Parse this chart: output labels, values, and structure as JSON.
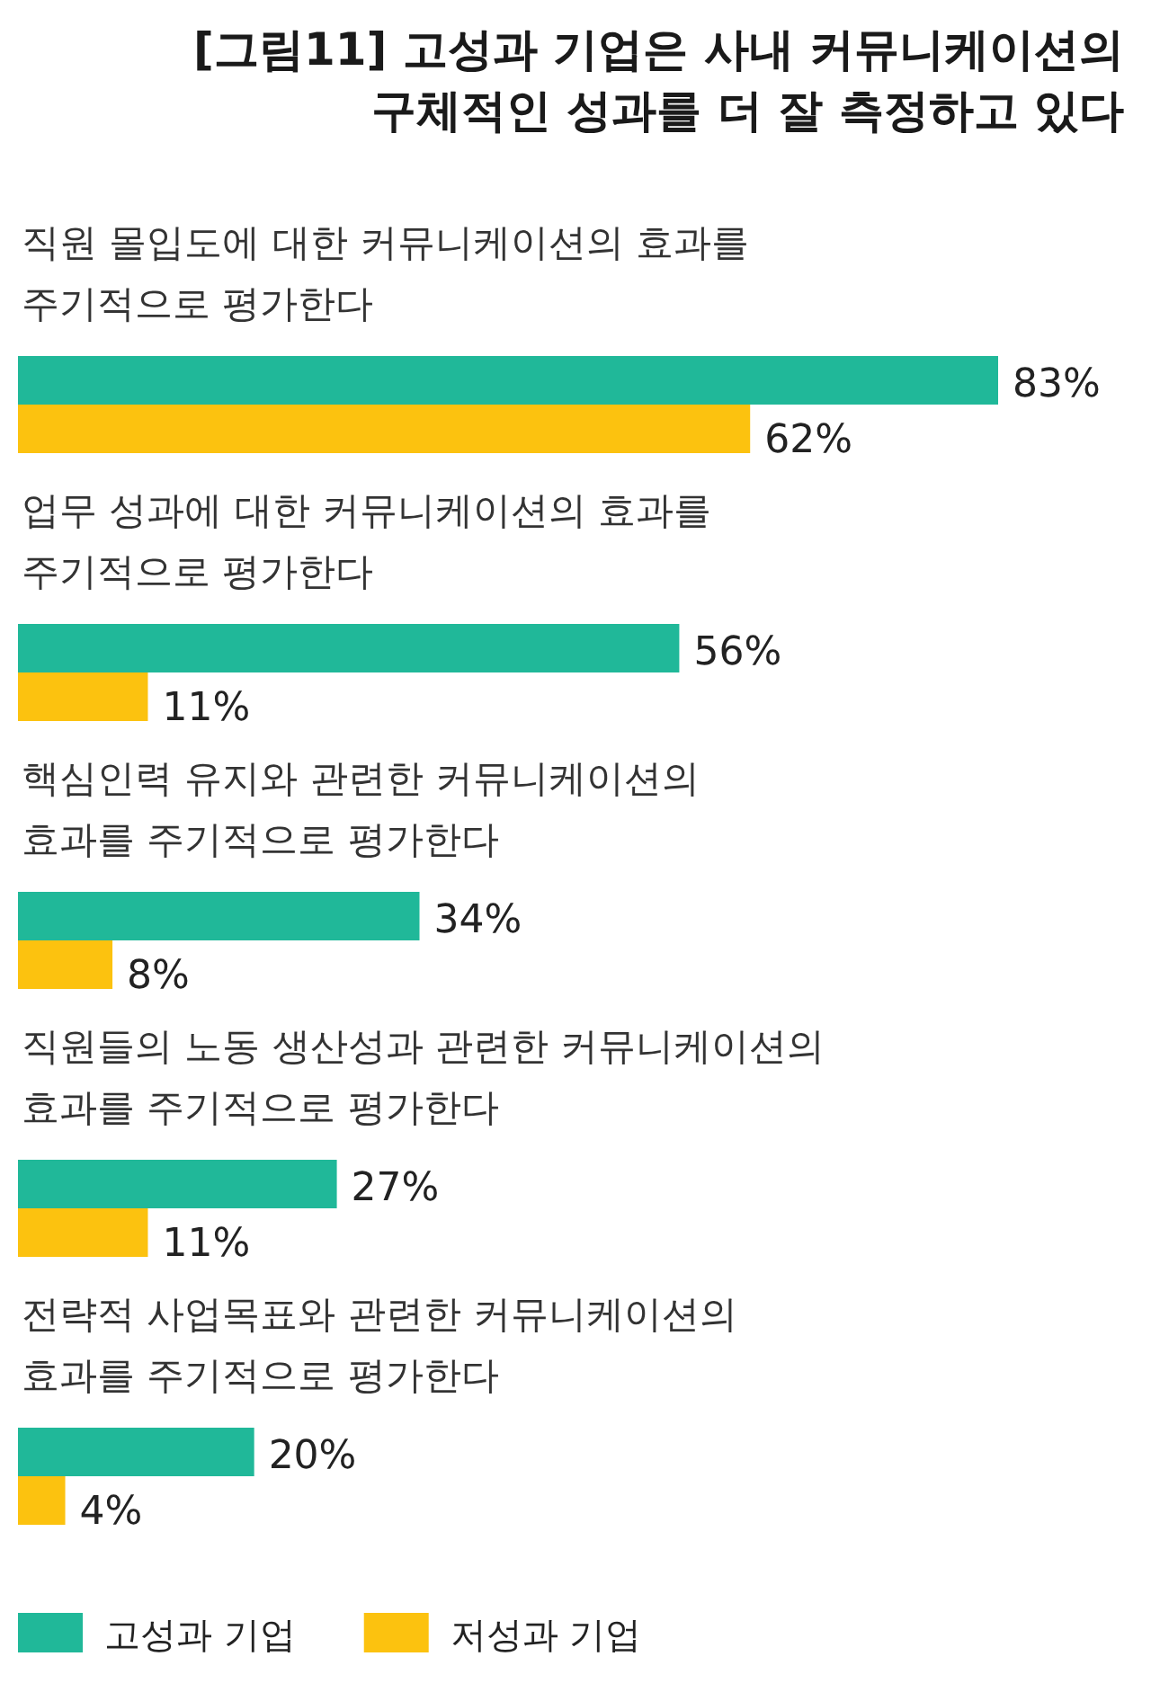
{
  "chart_data": {
    "type": "bar",
    "orientation": "horizontal",
    "title": "[그림11] 고성과 기업은 사내 커뮤니케이션의\n구체적인 성과를 더 잘 측정하고 있다",
    "categories": [
      "직원 몰입도에 대한 커뮤니케이션의 효과를\n주기적으로 평가한다",
      "업무 성과에 대한 커뮤니케이션의 효과를\n주기적으로 평가한다",
      "핵심인력 유지와 관련한 커뮤니케이션의\n효과를 주기적으로 평가한다",
      "직원들의 노동 생산성과 관련한 커뮤니케이션의\n효과를 주기적으로 평가한다",
      "전략적 사업목표와 관련한 커뮤니케이션의\n효과를 주기적으로 평가한다"
    ],
    "series": [
      {
        "name": "고성과 기업",
        "color": "#20b899",
        "values": [
          83,
          56,
          34,
          27,
          20
        ],
        "value_labels": [
          "83%",
          "56%",
          "34%",
          "27%",
          "20%"
        ]
      },
      {
        "name": "저성과 기업",
        "color": "#fcc20f",
        "values": [
          62,
          11,
          8,
          11,
          4
        ],
        "value_labels": [
          "62%",
          "11%",
          "8%",
          "11%",
          "4%"
        ]
      }
    ],
    "legend": "bottom"
  }
}
